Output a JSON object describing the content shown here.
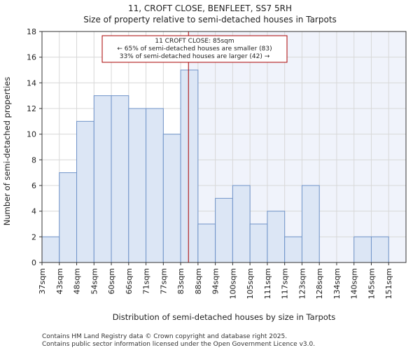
{
  "chart_data": {
    "type": "bar",
    "title": "11, CROFT CLOSE, BENFLEET, SS7 5RH",
    "subtitle": "Size of property relative to semi-detached houses in Tarpots",
    "xlabel": "Distribution of semi-detached houses by size in Tarpots",
    "ylabel": "Number of semi-detached properties",
    "categories": [
      "37sqm",
      "43sqm",
      "48sqm",
      "54sqm",
      "60sqm",
      "66sqm",
      "71sqm",
      "77sqm",
      "83sqm",
      "88sqm",
      "94sqm",
      "100sqm",
      "105sqm",
      "111sqm",
      "117sqm",
      "123sqm",
      "128sqm",
      "134sqm",
      "140sqm",
      "145sqm",
      "151sqm"
    ],
    "values": [
      2,
      7,
      11,
      13,
      13,
      12,
      12,
      10,
      15,
      3,
      5,
      6,
      3,
      4,
      2,
      6,
      0,
      0,
      2,
      2,
      0
    ],
    "ylim": [
      0,
      18
    ],
    "yticks": [
      0,
      2,
      4,
      6,
      8,
      10,
      12,
      14,
      16,
      18
    ],
    "marker": {
      "value_bin": 8.45,
      "color": "#aa0000",
      "lines": [
        "11 CROFT CLOSE: 85sqm",
        "← 65% of semi-detached houses are smaller (83)",
        "33% of semi-detached houses are larger (42) →"
      ]
    },
    "colors": {
      "bar_fill": "#dce6f5",
      "bar_stroke": "#6f93c8",
      "highlight_bg": "#f0f3fb"
    }
  },
  "footer": {
    "line1": "Contains HM Land Registry data © Crown copyright and database right 2025.",
    "line2": "Contains public sector information licensed under the Open Government Licence v3.0."
  }
}
